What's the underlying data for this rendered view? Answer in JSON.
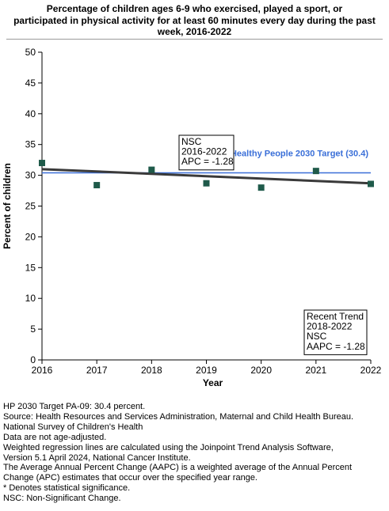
{
  "title_lines": [
    "Percentage of children ages 6-9 who exercised, played a sport, or",
    "participated in physical activity for at least 60 minutes every day during the past",
    "week, 2016-2022"
  ],
  "chart_data": {
    "type": "scatter",
    "title": "Percentage of children ages 6-9 who exercised, played a sport, or participated in physical activity for at least 60 minutes every day during the past week, 2016-2022",
    "xlabel": "Year",
    "ylabel": "Percent of children",
    "xlim": [
      2016,
      2022
    ],
    "ylim": [
      0,
      50
    ],
    "x_ticks": [
      "2016",
      "2017",
      "2018",
      "2019",
      "2020",
      "2021",
      "2022"
    ],
    "y_ticks": [
      "0",
      "5",
      "10",
      "15",
      "20",
      "25",
      "30",
      "35",
      "40",
      "45",
      "50"
    ],
    "grid": false,
    "points": [
      {
        "x": 2016,
        "y": 32.0
      },
      {
        "x": 2017,
        "y": 28.4
      },
      {
        "x": 2018,
        "y": 30.9
      },
      {
        "x": 2019,
        "y": 28.7
      },
      {
        "x": 2020,
        "y": 28.0
      },
      {
        "x": 2021,
        "y": 30.7
      },
      {
        "x": 2022,
        "y": 28.6
      }
    ],
    "trend_line": {
      "x": [
        2016,
        2022
      ],
      "y": [
        31.0,
        28.7
      ]
    },
    "target": {
      "value": 30.4,
      "label": "Healthy People 2030 Target (30.4)"
    },
    "annotations": [
      {
        "lines": [
          "NSC",
          "2016-2022",
          "APC = -1.28"
        ]
      },
      {
        "lines": [
          "Recent Trend",
          "2018-2022",
          "NSC",
          "AAPC = -1.28"
        ]
      }
    ]
  },
  "notes": [
    "HP 2030 Target PA-09: 30.4 percent.",
    "Source: Health Resources and Services Administration, Maternal and Child Health Bureau.",
    "National Survey of Children's Health",
    "Data are not age-adjusted.",
    "Weighted regression lines are calculated using the Joinpoint Trend Analysis Software,",
    "Version 5.1 April 2024, National Cancer Institute.",
    "The Average Annual Percent Change (AAPC) is a weighted average of the Annual Percent",
    "Change (APC) estimates that occur over the specified year range.",
    "* Denotes statistical significance.",
    "NSC: Non-Significant Change."
  ],
  "colors": {
    "marker": "#1f5a4a",
    "trend": "#3a3a3a",
    "target": "#3a6fd8",
    "axis": "#000000"
  }
}
